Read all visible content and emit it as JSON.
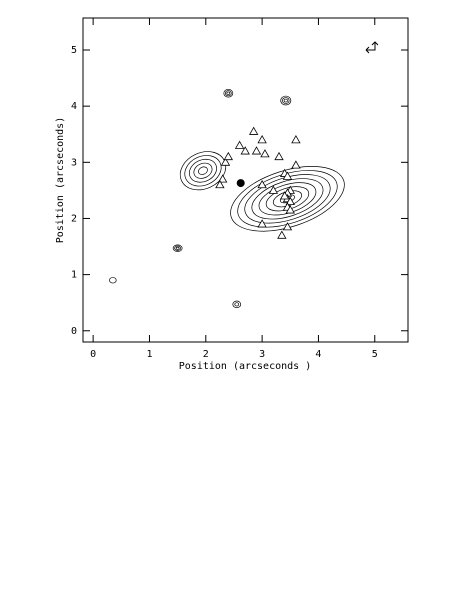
{
  "chart_data": {
    "type": "contour",
    "xlabel": "Position (arcseconds )",
    "ylabel": "Position (arcseconds)",
    "xlim": [
      -0.18,
      5.59
    ],
    "ylim": [
      -0.2,
      5.57
    ],
    "xticks": [
      0,
      1,
      2,
      3,
      4,
      5
    ],
    "yticks": [
      0,
      1,
      2,
      3,
      4,
      5
    ],
    "color": "#000000",
    "contours": [
      {
        "x": 3.45,
        "y": 2.35,
        "rx": 1.05,
        "ry": 0.5,
        "angle": -18,
        "levels": 8
      },
      {
        "x": 1.95,
        "y": 2.85,
        "rx": 0.42,
        "ry": 0.32,
        "angle": -25,
        "levels": 5
      },
      {
        "x": 2.4,
        "y": 4.23,
        "rx": 0.08,
        "ry": 0.07,
        "angle": 0,
        "levels": 3
      },
      {
        "x": 3.42,
        "y": 4.1,
        "rx": 0.09,
        "ry": 0.08,
        "angle": 0,
        "levels": 3
      },
      {
        "x": 1.5,
        "y": 1.47,
        "rx": 0.08,
        "ry": 0.06,
        "angle": 0,
        "levels": 3
      },
      {
        "x": 2.55,
        "y": 0.47,
        "rx": 0.07,
        "ry": 0.06,
        "angle": 0,
        "levels": 2
      },
      {
        "x": 0.35,
        "y": 0.9,
        "rx": 0.06,
        "ry": 0.05,
        "angle": 0,
        "levels": 1
      }
    ],
    "markers": {
      "x": [
        2.3,
        2.25,
        2.35,
        2.4,
        2.7,
        3.0,
        3.05,
        2.9,
        3.0,
        3.2,
        3.3,
        3.6,
        3.6,
        2.6,
        3.4,
        3.45,
        3.5,
        3.45,
        3.45,
        3.5,
        3.45,
        3.5,
        3.4,
        3.35,
        3.0,
        3.45,
        2.85
      ],
      "y": [
        2.7,
        2.6,
        3.0,
        3.1,
        3.2,
        3.4,
        3.15,
        3.2,
        2.6,
        2.5,
        3.1,
        3.4,
        2.95,
        3.3,
        2.8,
        2.75,
        2.5,
        2.45,
        2.35,
        2.3,
        2.2,
        2.15,
        2.4,
        1.7,
        1.9,
        1.85,
        3.55
      ]
    },
    "peak": {
      "x": 2.62,
      "y": 2.63
    }
  }
}
